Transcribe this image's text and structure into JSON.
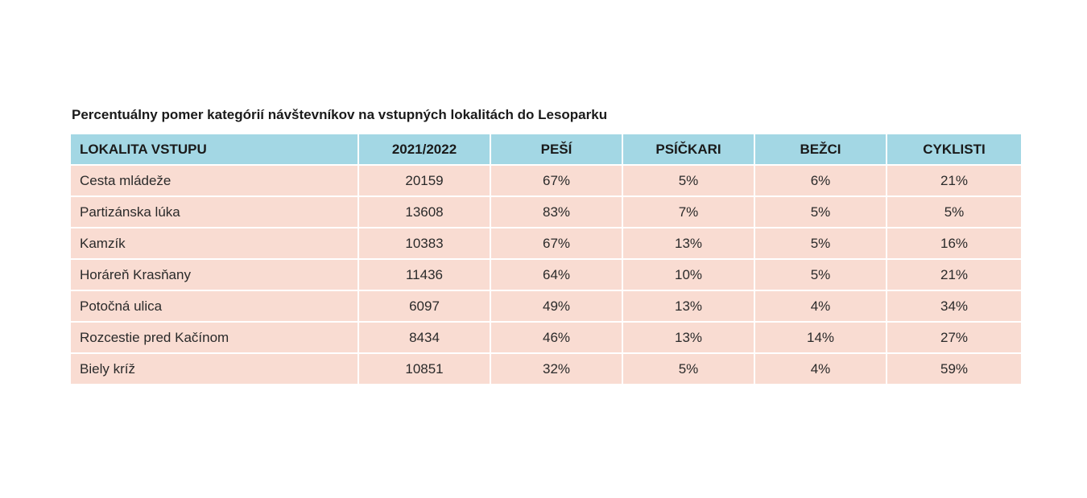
{
  "chart_data": {
    "type": "table",
    "title": "Percentuálny pomer kategórií návštevníkov na vstupných lokalitách do Lesoparku",
    "columns": [
      "LOKALITA VSTUPU",
      "2021/2022",
      "PEŠÍ",
      "PSÍČKARI",
      "BEŽCI",
      "CYKLISTI"
    ],
    "rows": [
      [
        "Cesta mládeže",
        "20159",
        "67%",
        "5%",
        "6%",
        "21%"
      ],
      [
        "Partizánska lúka",
        "13608",
        "83%",
        "7%",
        "5%",
        "5%"
      ],
      [
        "Kamzík",
        "10383",
        "67%",
        "13%",
        "5%",
        "16%"
      ],
      [
        "Horáreň Krasňany",
        "11436",
        "64%",
        "10%",
        "5%",
        "21%"
      ],
      [
        "Potočná ulica",
        "6097",
        "49%",
        "13%",
        "4%",
        "34%"
      ],
      [
        "Rozcestie pred Kačínom",
        "8434",
        "46%",
        "13%",
        "14%",
        "27%"
      ],
      [
        "Biely kríž",
        "10851",
        "32%",
        "5%",
        "4%",
        "59%"
      ]
    ],
    "colors": {
      "header_background": "#a3d7e4",
      "row_background": "#f9dcd2"
    }
  }
}
